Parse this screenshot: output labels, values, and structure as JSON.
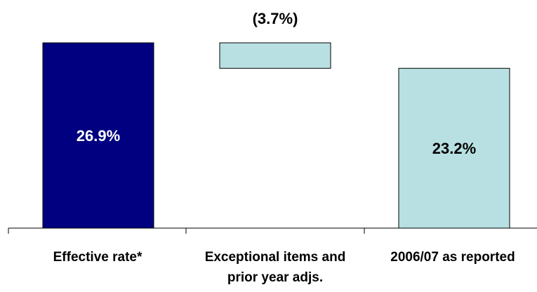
{
  "chart_data": {
    "type": "bar",
    "subtype": "waterfall",
    "categories": [
      "Effective rate*",
      "Exceptional items and prior year adjs.",
      "2006/07 as reported"
    ],
    "category_lines": [
      [
        "Effective rate*"
      ],
      [
        "Exceptional items and",
        "prior year adjs."
      ],
      [
        "2006/07 as reported"
      ]
    ],
    "values": [
      26.9,
      -3.7,
      23.2
    ],
    "kinds": [
      "total",
      "delta",
      "total"
    ],
    "data_labels": [
      "26.9%",
      "(3.7%)",
      "23.2%"
    ],
    "ylim": [
      0,
      26.9
    ],
    "grid": false,
    "legend": "none",
    "colors": {
      "total_start": "#000080",
      "delta": "#b8e0e2",
      "total_end": "#b8e0e2",
      "label_on_dark": "#ffffff",
      "label_on_light": "#000000",
      "axis": "#000000"
    }
  }
}
